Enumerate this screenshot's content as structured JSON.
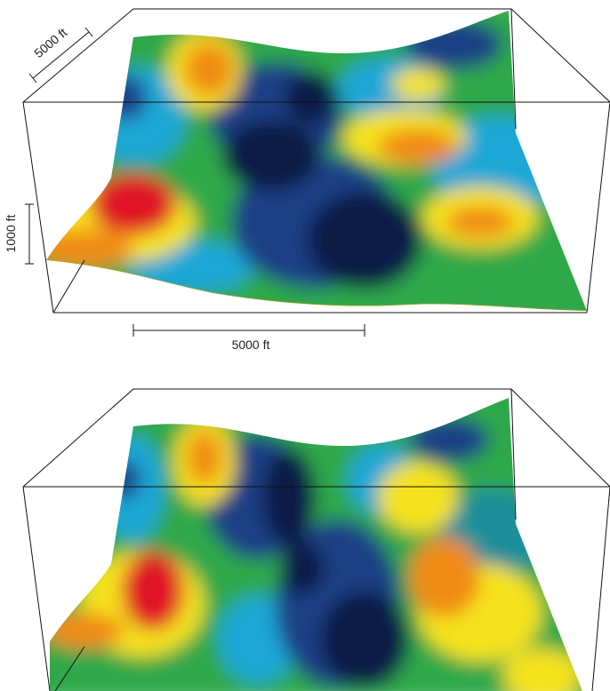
{
  "figure": {
    "panels": [
      {
        "name": "top-surface"
      },
      {
        "name": "bottom-surface"
      }
    ],
    "scale_bars": {
      "depth_label": "5000 ft",
      "vertical_label": "1000 ft",
      "horizontal_label": "5000 ft"
    },
    "colors": {
      "red": "#e01428",
      "orange": "#f08c14",
      "yellow": "#f5e21a",
      "green": "#2fa84a",
      "cyan": "#1aa7d6",
      "teal": "#1d8f9a",
      "blue": "#1b3f86",
      "navy": "#0b1e46",
      "frame": "#111111"
    }
  }
}
